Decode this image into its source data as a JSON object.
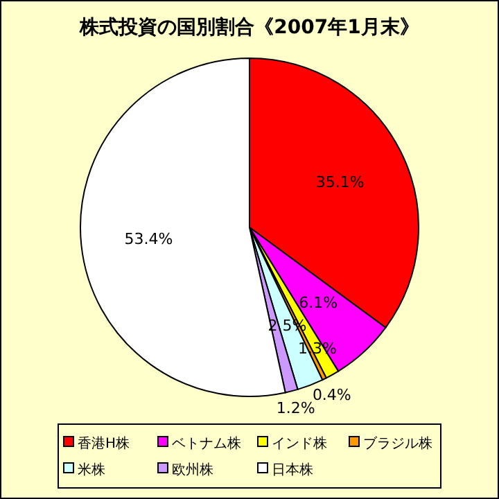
{
  "chart_data": {
    "type": "pie",
    "title": "株式投資の国別割合《2007年1月末》",
    "categories": [
      "香港H株",
      "ベトナム株",
      "インド株",
      "ブラジル株",
      "米株",
      "欧州株",
      "日本株"
    ],
    "values": [
      35.1,
      6.1,
      1.3,
      0.4,
      2.5,
      1.2,
      53.4
    ],
    "colors": [
      "#ff0000",
      "#ff00ff",
      "#ffff00",
      "#ff9900",
      "#ccffff",
      "#cc99ff",
      "#ffffff"
    ],
    "value_labels": [
      "35.1%",
      "6.1%",
      "1.3%",
      "0.4%",
      "2.5%",
      "1.2%",
      "53.4%"
    ],
    "legend": "bottom"
  }
}
